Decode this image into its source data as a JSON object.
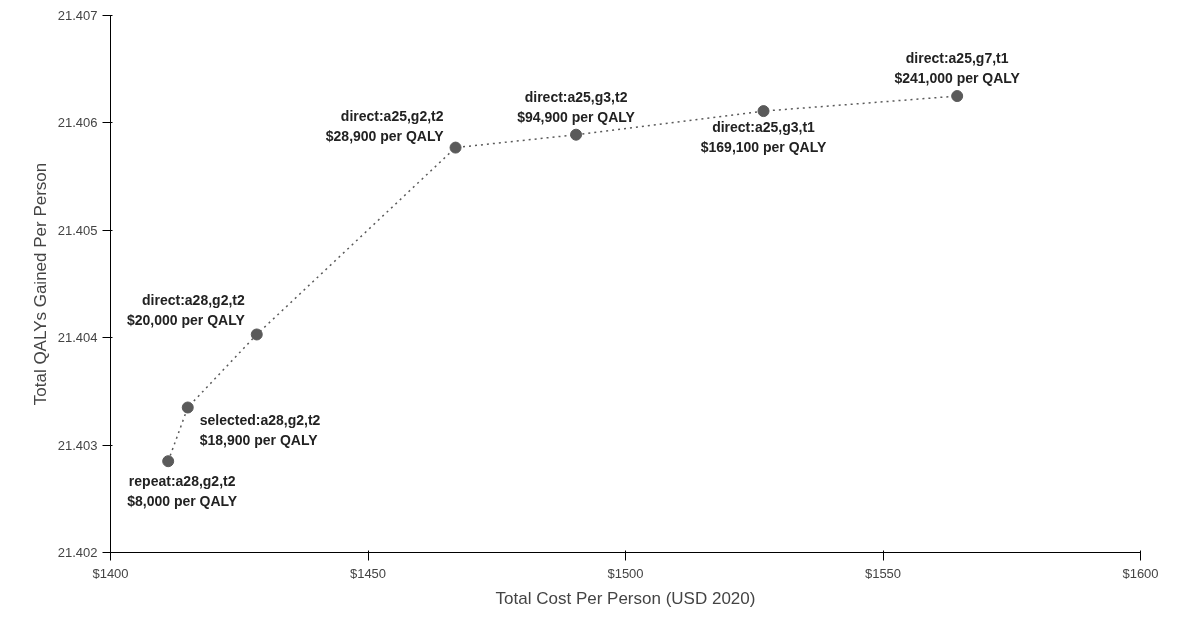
{
  "chart_data": {
    "type": "line",
    "xlabel": "Total Cost Per Person (USD 2020)",
    "ylabel": "Total QALYs Gained Per Person",
    "x": [
      1411.2,
      1415,
      1428.4,
      1467,
      1490.4,
      1526.8,
      1564.4
    ],
    "series": [
      {
        "color": "#5a5a5a",
        "values": [
          21.40285,
          21.40335,
          21.40403,
          21.40577,
          21.40589,
          21.40611,
          21.40625
        ],
        "value_labels": [
          "repeat:a28,g2,t2\n$8,000 per QALY",
          "selected:a28,g2,t2\n$18,900 per QALY",
          "direct:a28,g2,t2\n$20,000 per QALY",
          "direct:a25,g2,t2\n$28,900 per QALY",
          "direct:a25,g3,t2\n$94,900 per QALY",
          "direct:a25,g3,t1\n$169,100 per QALY",
          "direct:a25,g7,t1\n$241,000 per QALY"
        ]
      }
    ],
    "xlim": [
      1400,
      1600
    ],
    "ylim": [
      21.402,
      21.407
    ],
    "xticks": [
      {
        "value": 1400,
        "label": "$1400"
      },
      {
        "value": 1450,
        "label": "$1450"
      },
      {
        "value": 1500,
        "label": "$1500"
      },
      {
        "value": 1550,
        "label": "$1550"
      },
      {
        "value": 1600,
        "label": "$1600"
      }
    ],
    "yticks": [
      21.402,
      21.403,
      21.404,
      21.405,
      21.406,
      21.407
    ],
    "grid": false,
    "marker": "circle",
    "line_style": "dotted"
  }
}
